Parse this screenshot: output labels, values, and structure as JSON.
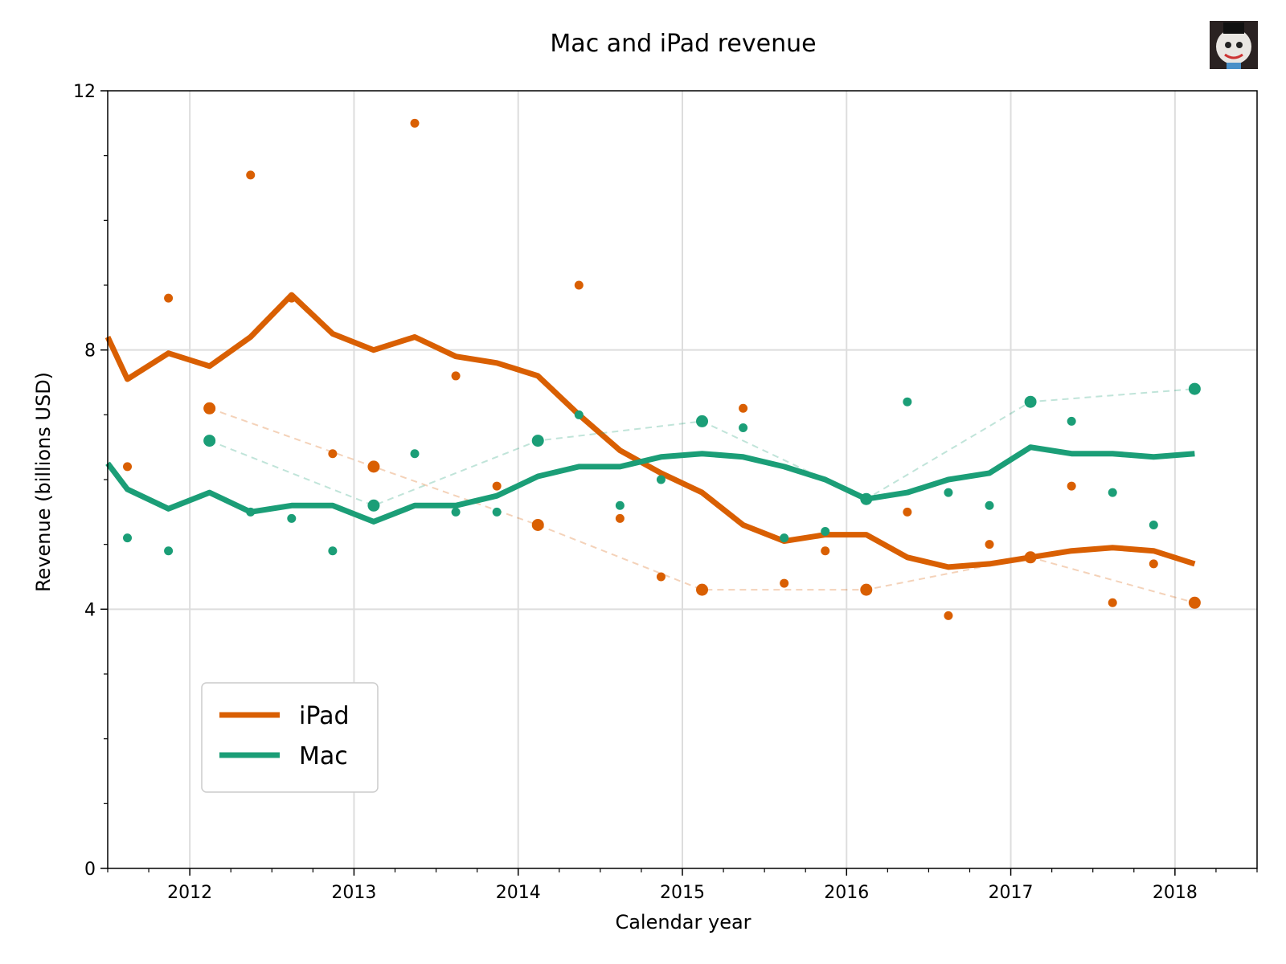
{
  "chart_data": {
    "type": "line",
    "title": "Mac and iPad revenue",
    "xlabel": "Calendar year",
    "ylabel": "Revenue (billions USD)",
    "xlim": [
      2011.5,
      2018.5
    ],
    "ylim": [
      0,
      12
    ],
    "x_ticks": [
      2012,
      2013,
      2014,
      2015,
      2016,
      2017,
      2018
    ],
    "x_tick_labels": [
      "2012",
      "2013",
      "2014",
      "2015",
      "2016",
      "2017",
      "2018"
    ],
    "y_ticks": [
      0,
      4,
      8,
      12
    ],
    "y_tick_labels": [
      "0",
      "4",
      "8",
      "12"
    ],
    "grid": true,
    "legend": {
      "position": "lower-left",
      "entries": [
        "iPad",
        "Mac"
      ]
    },
    "series": [
      {
        "name": "iPad",
        "color": "#d95f02",
        "quarterly": {
          "x": [
            2011.62,
            2011.87,
            2012.12,
            2012.37,
            2012.62,
            2012.87,
            2013.12,
            2013.37,
            2013.62,
            2013.87,
            2014.12,
            2014.37,
            2014.62,
            2014.87,
            2015.12,
            2015.37,
            2015.62,
            2015.87,
            2016.12,
            2016.37,
            2016.62,
            2016.87,
            2017.12,
            2017.37,
            2017.62,
            2017.87,
            2018.12
          ],
          "y": [
            6.2,
            8.8,
            7.1,
            10.7,
            8.8,
            6.4,
            6.2,
            11.5,
            7.6,
            5.9,
            5.3,
            9.0,
            5.4,
            4.5,
            4.3,
            7.1,
            4.4,
            4.9,
            4.3,
            5.5,
            3.9,
            5.0,
            4.8,
            5.9,
            4.1,
            4.7,
            4.1
          ]
        },
        "rolling_average": {
          "x": [
            2011.5,
            2011.62,
            2011.87,
            2012.12,
            2012.37,
            2012.62,
            2012.87,
            2013.12,
            2013.37,
            2013.62,
            2013.87,
            2014.12,
            2014.37,
            2014.62,
            2014.87,
            2015.12,
            2015.37,
            2015.62,
            2015.87,
            2016.12,
            2016.37,
            2016.62,
            2016.87,
            2017.12,
            2017.37,
            2017.62,
            2017.87,
            2018.12
          ],
          "y": [
            8.2,
            7.55,
            7.95,
            7.75,
            8.2,
            8.85,
            8.25,
            8.0,
            8.2,
            7.9,
            7.8,
            7.6,
            7.0,
            6.45,
            6.1,
            5.8,
            5.3,
            5.05,
            5.15,
            5.15,
            4.8,
            4.65,
            4.7,
            4.8,
            4.9,
            4.95,
            4.9,
            4.7
          ]
        },
        "annual_q1": {
          "x": [
            2012.12,
            2013.12,
            2014.12,
            2015.12,
            2016.12,
            2017.12,
            2018.12
          ],
          "y": [
            7.1,
            6.2,
            5.3,
            4.3,
            4.3,
            4.8,
            4.1
          ]
        }
      },
      {
        "name": "Mac",
        "color": "#1b9e77",
        "quarterly": {
          "x": [
            2011.62,
            2011.87,
            2012.12,
            2012.37,
            2012.62,
            2012.87,
            2013.12,
            2013.37,
            2013.62,
            2013.87,
            2014.12,
            2014.37,
            2014.62,
            2014.87,
            2015.12,
            2015.37,
            2015.62,
            2015.87,
            2016.12,
            2016.37,
            2016.62,
            2016.87,
            2017.12,
            2017.37,
            2017.62,
            2017.87,
            2018.12
          ],
          "y": [
            5.1,
            4.9,
            6.6,
            5.5,
            5.4,
            4.9,
            5.6,
            6.4,
            5.5,
            5.5,
            6.6,
            7.0,
            5.6,
            6.0,
            6.9,
            6.8,
            5.1,
            5.2,
            5.7,
            7.2,
            5.8,
            5.6,
            7.2,
            6.9,
            5.8,
            5.3,
            7.4
          ]
        },
        "rolling_average": {
          "x": [
            2011.5,
            2011.62,
            2011.87,
            2012.12,
            2012.37,
            2012.62,
            2012.87,
            2013.12,
            2013.37,
            2013.62,
            2013.87,
            2014.12,
            2014.37,
            2014.62,
            2014.87,
            2015.12,
            2015.37,
            2015.62,
            2015.87,
            2016.12,
            2016.37,
            2016.62,
            2016.87,
            2017.12,
            2017.37,
            2017.62,
            2017.87,
            2018.12
          ],
          "y": [
            6.25,
            5.85,
            5.55,
            5.8,
            5.5,
            5.6,
            5.6,
            5.35,
            5.6,
            5.6,
            5.75,
            6.05,
            6.2,
            6.2,
            6.35,
            6.4,
            6.35,
            6.2,
            6.0,
            5.7,
            5.8,
            6.0,
            6.1,
            6.5,
            6.4,
            6.4,
            6.35,
            6.4
          ]
        },
        "annual_q1": {
          "x": [
            2012.12,
            2013.12,
            2014.12,
            2015.12,
            2016.12,
            2017.12,
            2018.12
          ],
          "y": [
            6.6,
            5.6,
            6.6,
            6.9,
            5.7,
            7.2,
            7.4
          ]
        }
      }
    ]
  }
}
